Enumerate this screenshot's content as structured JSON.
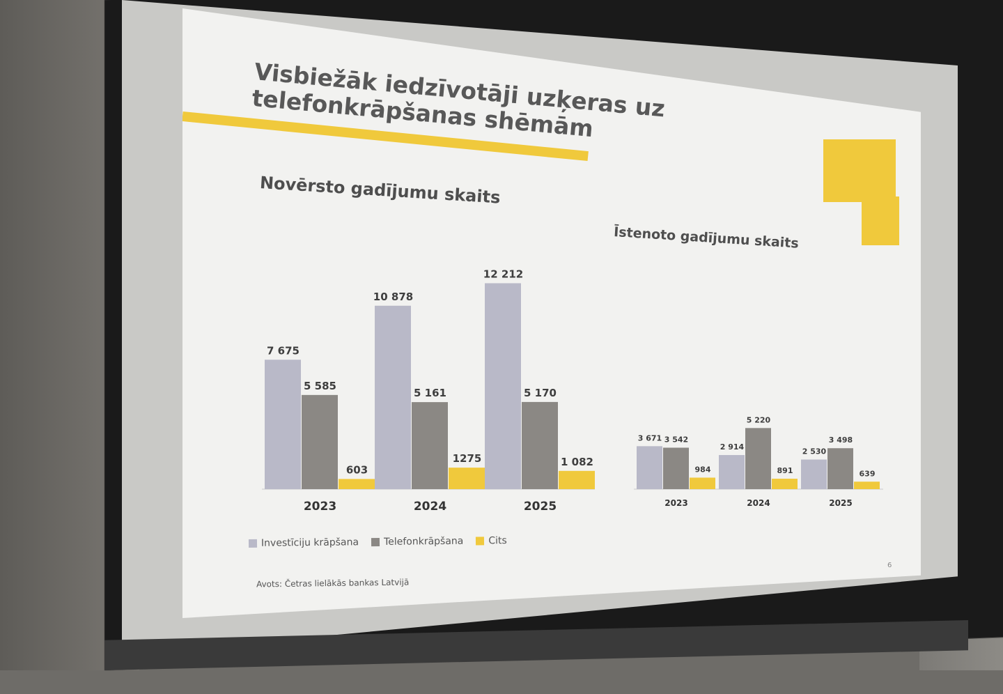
{
  "slide": {
    "title": "Visbiežāk iedzīvotāji uzķeras uz telefonkrāpšanas shēmām",
    "page_number": "6",
    "source": "Avots: Četras lielākās bankas Latvijā",
    "colors": {
      "accent": "#f0c93c",
      "investment": "#b9b9c8",
      "phone": "#8b8884",
      "other": "#f0c93c"
    }
  },
  "legend": {
    "items": [
      {
        "label": "Investīciju krāpšana",
        "color": "#b9b9c8"
      },
      {
        "label": "Telefonkrāpšana",
        "color": "#8b8884"
      },
      {
        "label": "Cits",
        "color": "#f0c93c"
      }
    ]
  },
  "chart_data": [
    {
      "type": "bar",
      "title": "Novērsto gadījumu skaits",
      "categories": [
        "2023",
        "2024",
        "2025"
      ],
      "series": [
        {
          "name": "Investīciju krāpšana",
          "values": [
            7675,
            10878,
            12212
          ],
          "labels": [
            "7 675",
            "10 878",
            "12 212"
          ]
        },
        {
          "name": "Telefonkrāpšana",
          "values": [
            5585,
            5161,
            5170
          ],
          "labels": [
            "5 585",
            "5 161",
            "5 170"
          ]
        },
        {
          "name": "Cits",
          "values": [
            603,
            1275,
            1082
          ],
          "labels": [
            "603",
            "1275",
            "1 082"
          ]
        }
      ],
      "legend": "bottom-left"
    },
    {
      "type": "bar",
      "title": "Īstenoto gadījumu skaits",
      "categories": [
        "2023",
        "2024",
        "2025"
      ],
      "series": [
        {
          "name": "Investīciju krāpšana",
          "values": [
            3671,
            2914,
            2530
          ],
          "labels": [
            "3 671",
            "2 914",
            "2 530"
          ]
        },
        {
          "name": "Telefonkrāpšana",
          "values": [
            3542,
            5220,
            3498
          ],
          "labels": [
            "3 542",
            "5 220",
            "3 498"
          ]
        },
        {
          "name": "Cits",
          "values": [
            984,
            891,
            639
          ],
          "labels": [
            "984",
            "891",
            "639"
          ]
        }
      ]
    }
  ]
}
